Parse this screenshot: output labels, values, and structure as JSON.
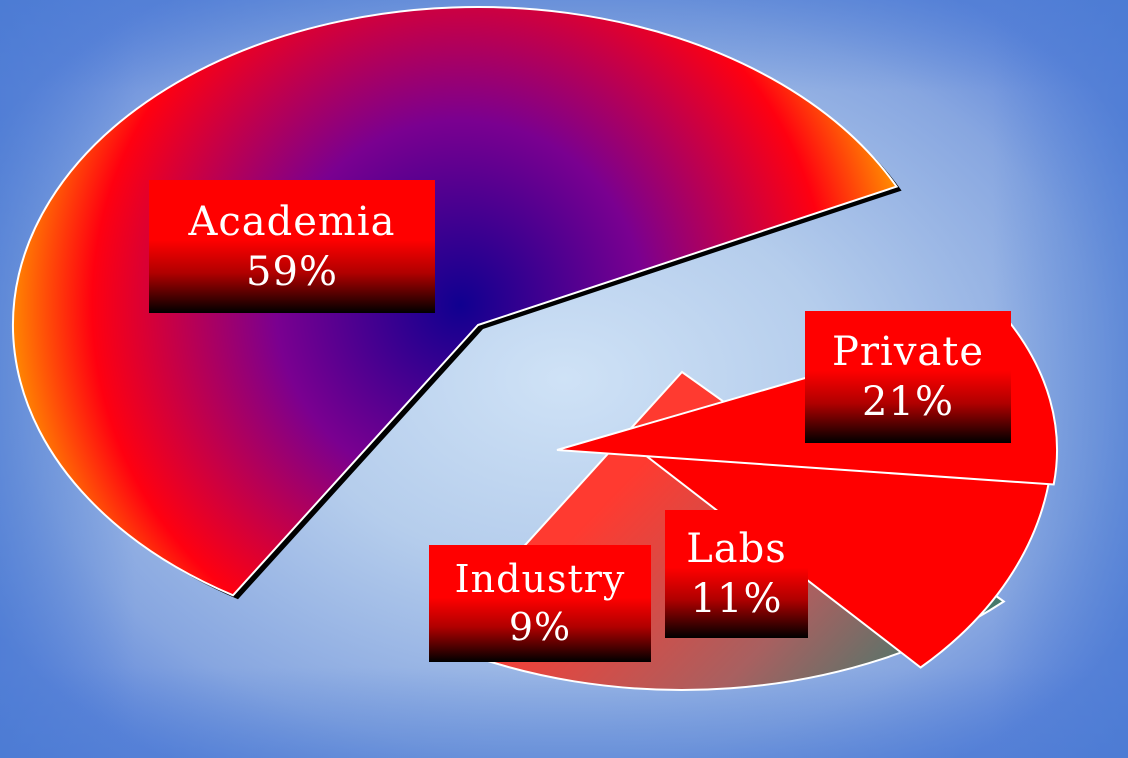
{
  "chart_data": {
    "type": "pie",
    "title": "",
    "legend": "none",
    "slices": [
      {
        "label": "Academia",
        "value": 59,
        "display": "59%",
        "color": "#ff0000",
        "center_color": "#1a0090"
      },
      {
        "label": "Private",
        "value": 21,
        "display": "21%",
        "color": "#ff3a30",
        "edge_color": "#2e8070"
      },
      {
        "label": "Labs",
        "value": 11,
        "display": "11%",
        "color": "#ff0000"
      },
      {
        "label": "Industry",
        "value": 9,
        "display": "9%",
        "color": "#ff0000"
      }
    ]
  },
  "theme": {
    "background_center": "#cfe2f6",
    "background_edge": "#4f7ed6",
    "slice_outline": "#ffffff",
    "label_top": "#ff0000",
    "label_bottom": "#000000",
    "label_text": "#ffffff"
  }
}
